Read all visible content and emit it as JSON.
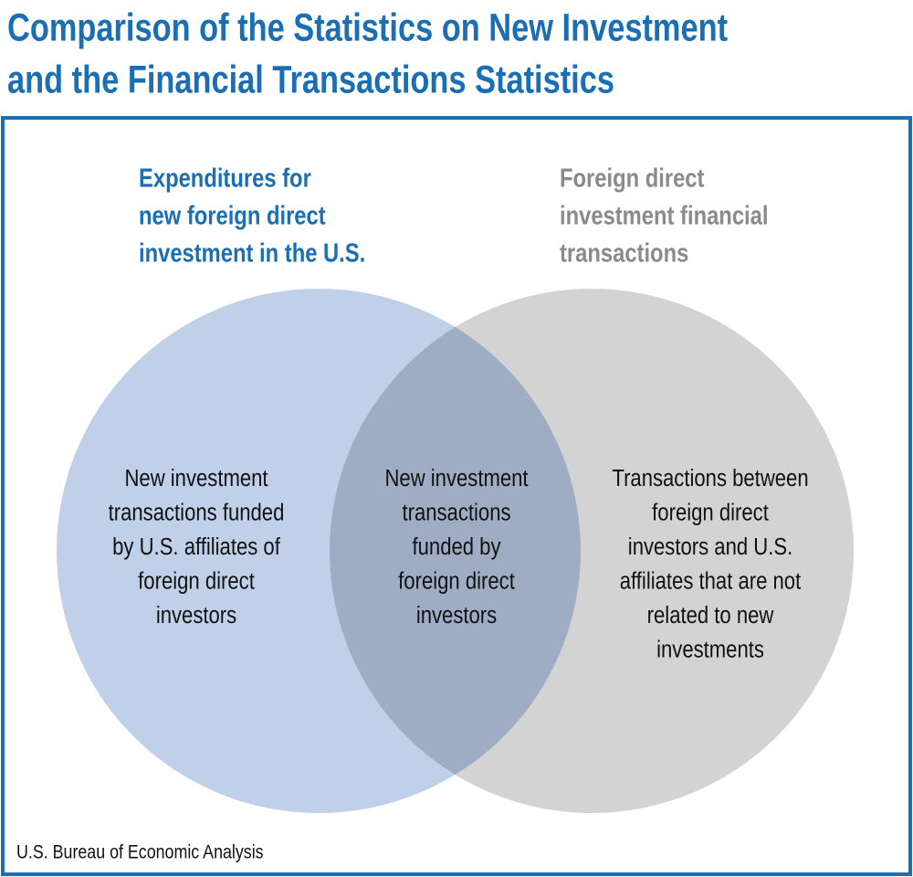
{
  "title": [
    "Comparison of the Statistics on New Investment",
    "and the Financial Transactions Statistics"
  ],
  "sets": [
    {
      "label": [
        "Expenditures for",
        "new foreign direct",
        "investment in the U.S."
      ],
      "region": [
        "New investment",
        "transactions funded",
        "by U.S. affiliates of",
        "foreign direct",
        "investors"
      ]
    },
    {
      "label": [
        "Foreign direct",
        "investment financial",
        "transactions"
      ],
      "region": [
        "Transactions between",
        "foreign direct",
        "investors and U.S.",
        "affiliates that are not",
        "related to new",
        "investments"
      ]
    }
  ],
  "overlap": [
    "New investment",
    "transactions",
    "funded by",
    "foreign direct",
    "investors"
  ],
  "source": "U.S. Bureau of Economic Analysis"
}
